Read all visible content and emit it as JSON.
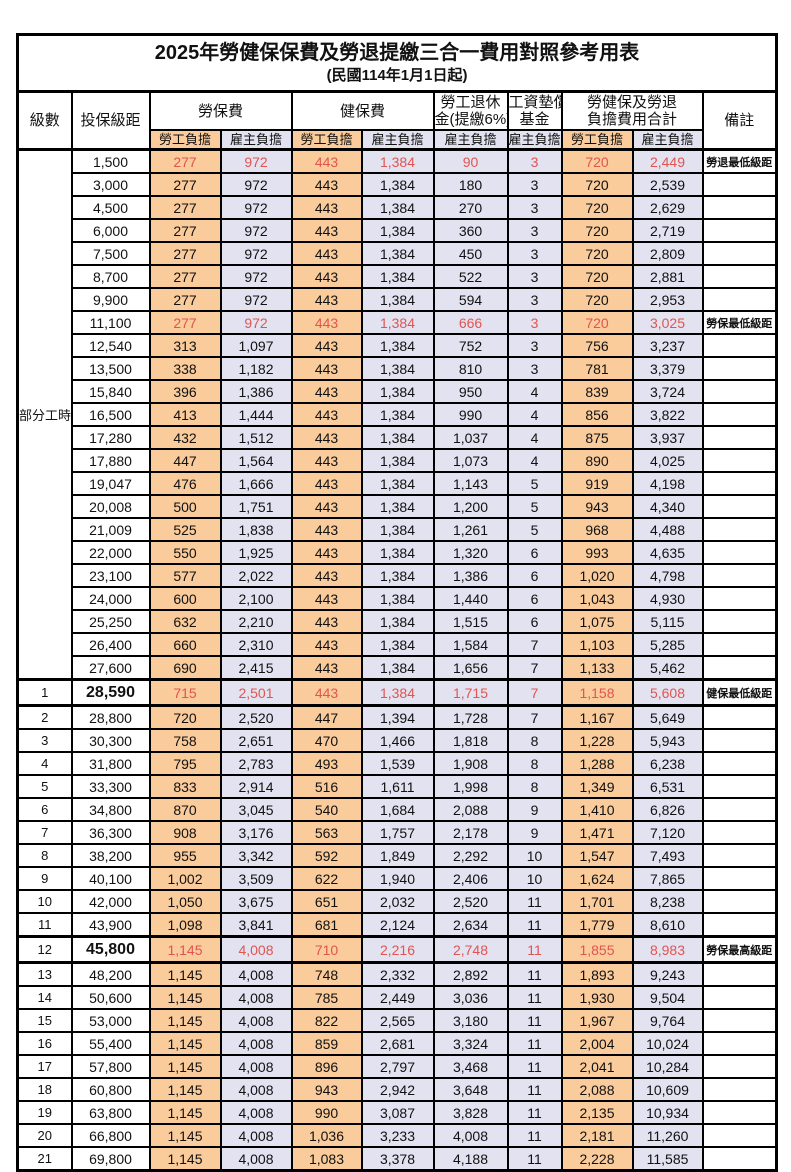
{
  "colors": {
    "employee_bg": "#FACB9B",
    "employer_bg": "#E2E2F1",
    "highlight_text": "#E05550",
    "remark_text": "#EE7B74",
    "border": "#000000"
  },
  "table": {
    "title": "2025年勞健保保費及勞退提繳三合一費用對照參考用表",
    "subtitle": "(民國114年1月1日起)",
    "headers": {
      "level": "級數",
      "bracket": "投保級距",
      "labor_insurance": "勞保費",
      "health_insurance": "健保費",
      "pension_line1": "勞工退休",
      "pension_line2": "金(提繳6%)",
      "wage_fund_line1": "工資墊償",
      "wage_fund_line2": "基金",
      "total_line1": "勞健保及勞退",
      "total_line2": "負擔費用合計",
      "remark": "備註",
      "employee_share": "勞工負擔",
      "employer_share": "雇主負擔"
    },
    "rows": [
      {
        "level": "部分工時",
        "levelSpan": 23,
        "bracket": "1,500",
        "values": [
          "277",
          "972",
          "443",
          "1,384",
          "90",
          "3",
          "720",
          "2,449"
        ],
        "remark": "勞退最低級距",
        "red": true
      },
      {
        "bracket": "3,000",
        "values": [
          "277",
          "972",
          "443",
          "1,384",
          "180",
          "3",
          "720",
          "2,539"
        ]
      },
      {
        "bracket": "4,500",
        "values": [
          "277",
          "972",
          "443",
          "1,384",
          "270",
          "3",
          "720",
          "2,629"
        ]
      },
      {
        "bracket": "6,000",
        "values": [
          "277",
          "972",
          "443",
          "1,384",
          "360",
          "3",
          "720",
          "2,719"
        ]
      },
      {
        "bracket": "7,500",
        "values": [
          "277",
          "972",
          "443",
          "1,384",
          "450",
          "3",
          "720",
          "2,809"
        ]
      },
      {
        "bracket": "8,700",
        "values": [
          "277",
          "972",
          "443",
          "1,384",
          "522",
          "3",
          "720",
          "2,881"
        ]
      },
      {
        "bracket": "9,900",
        "values": [
          "277",
          "972",
          "443",
          "1,384",
          "594",
          "3",
          "720",
          "2,953"
        ]
      },
      {
        "bracket": "11,100",
        "values": [
          "277",
          "972",
          "443",
          "1,384",
          "666",
          "3",
          "720",
          "3,025"
        ],
        "remark": "勞保最低級距",
        "red": true
      },
      {
        "bracket": "12,540",
        "values": [
          "313",
          "1,097",
          "443",
          "1,384",
          "752",
          "3",
          "756",
          "3,237"
        ]
      },
      {
        "bracket": "13,500",
        "values": [
          "338",
          "1,182",
          "443",
          "1,384",
          "810",
          "3",
          "781",
          "3,379"
        ]
      },
      {
        "bracket": "15,840",
        "values": [
          "396",
          "1,386",
          "443",
          "1,384",
          "950",
          "4",
          "839",
          "3,724"
        ]
      },
      {
        "bracket": "16,500",
        "values": [
          "413",
          "1,444",
          "443",
          "1,384",
          "990",
          "4",
          "856",
          "3,822"
        ]
      },
      {
        "bracket": "17,280",
        "values": [
          "432",
          "1,512",
          "443",
          "1,384",
          "1,037",
          "4",
          "875",
          "3,937"
        ]
      },
      {
        "bracket": "17,880",
        "values": [
          "447",
          "1,564",
          "443",
          "1,384",
          "1,073",
          "4",
          "890",
          "4,025"
        ]
      },
      {
        "bracket": "19,047",
        "values": [
          "476",
          "1,666",
          "443",
          "1,384",
          "1,143",
          "5",
          "919",
          "4,198"
        ]
      },
      {
        "bracket": "20,008",
        "values": [
          "500",
          "1,751",
          "443",
          "1,384",
          "1,200",
          "5",
          "943",
          "4,340"
        ]
      },
      {
        "bracket": "21,009",
        "values": [
          "525",
          "1,838",
          "443",
          "1,384",
          "1,261",
          "5",
          "968",
          "4,488"
        ]
      },
      {
        "bracket": "22,000",
        "values": [
          "550",
          "1,925",
          "443",
          "1,384",
          "1,320",
          "6",
          "993",
          "4,635"
        ]
      },
      {
        "bracket": "23,100",
        "values": [
          "577",
          "2,022",
          "443",
          "1,384",
          "1,386",
          "6",
          "1,020",
          "4,798"
        ]
      },
      {
        "bracket": "24,000",
        "values": [
          "600",
          "2,100",
          "443",
          "1,384",
          "1,440",
          "6",
          "1,043",
          "4,930"
        ]
      },
      {
        "bracket": "25,250",
        "values": [
          "632",
          "2,210",
          "443",
          "1,384",
          "1,515",
          "6",
          "1,075",
          "5,115"
        ]
      },
      {
        "bracket": "26,400",
        "values": [
          "660",
          "2,310",
          "443",
          "1,384",
          "1,584",
          "7",
          "1,103",
          "5,285"
        ]
      },
      {
        "bracket": "27,600",
        "values": [
          "690",
          "2,415",
          "443",
          "1,384",
          "1,656",
          "7",
          "1,133",
          "5,462"
        ]
      },
      {
        "level": "1",
        "bracket": "28,590",
        "values": [
          "715",
          "2,501",
          "443",
          "1,384",
          "1,715",
          "7",
          "1,158",
          "5,608"
        ],
        "remark": "健保最低級距",
        "red": true,
        "emph": true
      },
      {
        "level": "2",
        "bracket": "28,800",
        "values": [
          "720",
          "2,520",
          "447",
          "1,394",
          "1,728",
          "7",
          "1,167",
          "5,649"
        ]
      },
      {
        "level": "3",
        "bracket": "30,300",
        "values": [
          "758",
          "2,651",
          "470",
          "1,466",
          "1,818",
          "8",
          "1,228",
          "5,943"
        ]
      },
      {
        "level": "4",
        "bracket": "31,800",
        "values": [
          "795",
          "2,783",
          "493",
          "1,539",
          "1,908",
          "8",
          "1,288",
          "6,238"
        ]
      },
      {
        "level": "5",
        "bracket": "33,300",
        "values": [
          "833",
          "2,914",
          "516",
          "1,611",
          "1,998",
          "8",
          "1,349",
          "6,531"
        ]
      },
      {
        "level": "6",
        "bracket": "34,800",
        "values": [
          "870",
          "3,045",
          "540",
          "1,684",
          "2,088",
          "9",
          "1,410",
          "6,826"
        ]
      },
      {
        "level": "7",
        "bracket": "36,300",
        "values": [
          "908",
          "3,176",
          "563",
          "1,757",
          "2,178",
          "9",
          "1,471",
          "7,120"
        ]
      },
      {
        "level": "8",
        "bracket": "38,200",
        "values": [
          "955",
          "3,342",
          "592",
          "1,849",
          "2,292",
          "10",
          "1,547",
          "7,493"
        ]
      },
      {
        "level": "9",
        "bracket": "40,100",
        "values": [
          "1,002",
          "3,509",
          "622",
          "1,940",
          "2,406",
          "10",
          "1,624",
          "7,865"
        ]
      },
      {
        "level": "10",
        "bracket": "42,000",
        "values": [
          "1,050",
          "3,675",
          "651",
          "2,032",
          "2,520",
          "11",
          "1,701",
          "8,238"
        ]
      },
      {
        "level": "11",
        "bracket": "43,900",
        "values": [
          "1,098",
          "3,841",
          "681",
          "2,124",
          "2,634",
          "11",
          "1,779",
          "8,610"
        ]
      },
      {
        "level": "12",
        "bracket": "45,800",
        "values": [
          "1,145",
          "4,008",
          "710",
          "2,216",
          "2,748",
          "11",
          "1,855",
          "8,983"
        ],
        "remark": "勞保最高級距",
        "red": true,
        "emph": true
      },
      {
        "level": "13",
        "bracket": "48,200",
        "values": [
          "1,145",
          "4,008",
          "748",
          "2,332",
          "2,892",
          "11",
          "1,893",
          "9,243"
        ]
      },
      {
        "level": "14",
        "bracket": "50,600",
        "values": [
          "1,145",
          "4,008",
          "785",
          "2,449",
          "3,036",
          "11",
          "1,930",
          "9,504"
        ]
      },
      {
        "level": "15",
        "bracket": "53,000",
        "values": [
          "1,145",
          "4,008",
          "822",
          "2,565",
          "3,180",
          "11",
          "1,967",
          "9,764"
        ]
      },
      {
        "level": "16",
        "bracket": "55,400",
        "values": [
          "1,145",
          "4,008",
          "859",
          "2,681",
          "3,324",
          "11",
          "2,004",
          "10,024"
        ]
      },
      {
        "level": "17",
        "bracket": "57,800",
        "values": [
          "1,145",
          "4,008",
          "896",
          "2,797",
          "3,468",
          "11",
          "2,041",
          "10,284"
        ]
      },
      {
        "level": "18",
        "bracket": "60,800",
        "values": [
          "1,145",
          "4,008",
          "943",
          "2,942",
          "3,648",
          "11",
          "2,088",
          "10,609"
        ]
      },
      {
        "level": "19",
        "bracket": "63,800",
        "values": [
          "1,145",
          "4,008",
          "990",
          "3,087",
          "3,828",
          "11",
          "2,135",
          "10,934"
        ]
      },
      {
        "level": "20",
        "bracket": "66,800",
        "values": [
          "1,145",
          "4,008",
          "1,036",
          "3,233",
          "4,008",
          "11",
          "2,181",
          "11,260"
        ]
      },
      {
        "level": "21",
        "bracket": "69,800",
        "values": [
          "1,145",
          "4,008",
          "1,083",
          "3,378",
          "4,188",
          "11",
          "2,228",
          "11,585"
        ]
      }
    ]
  }
}
